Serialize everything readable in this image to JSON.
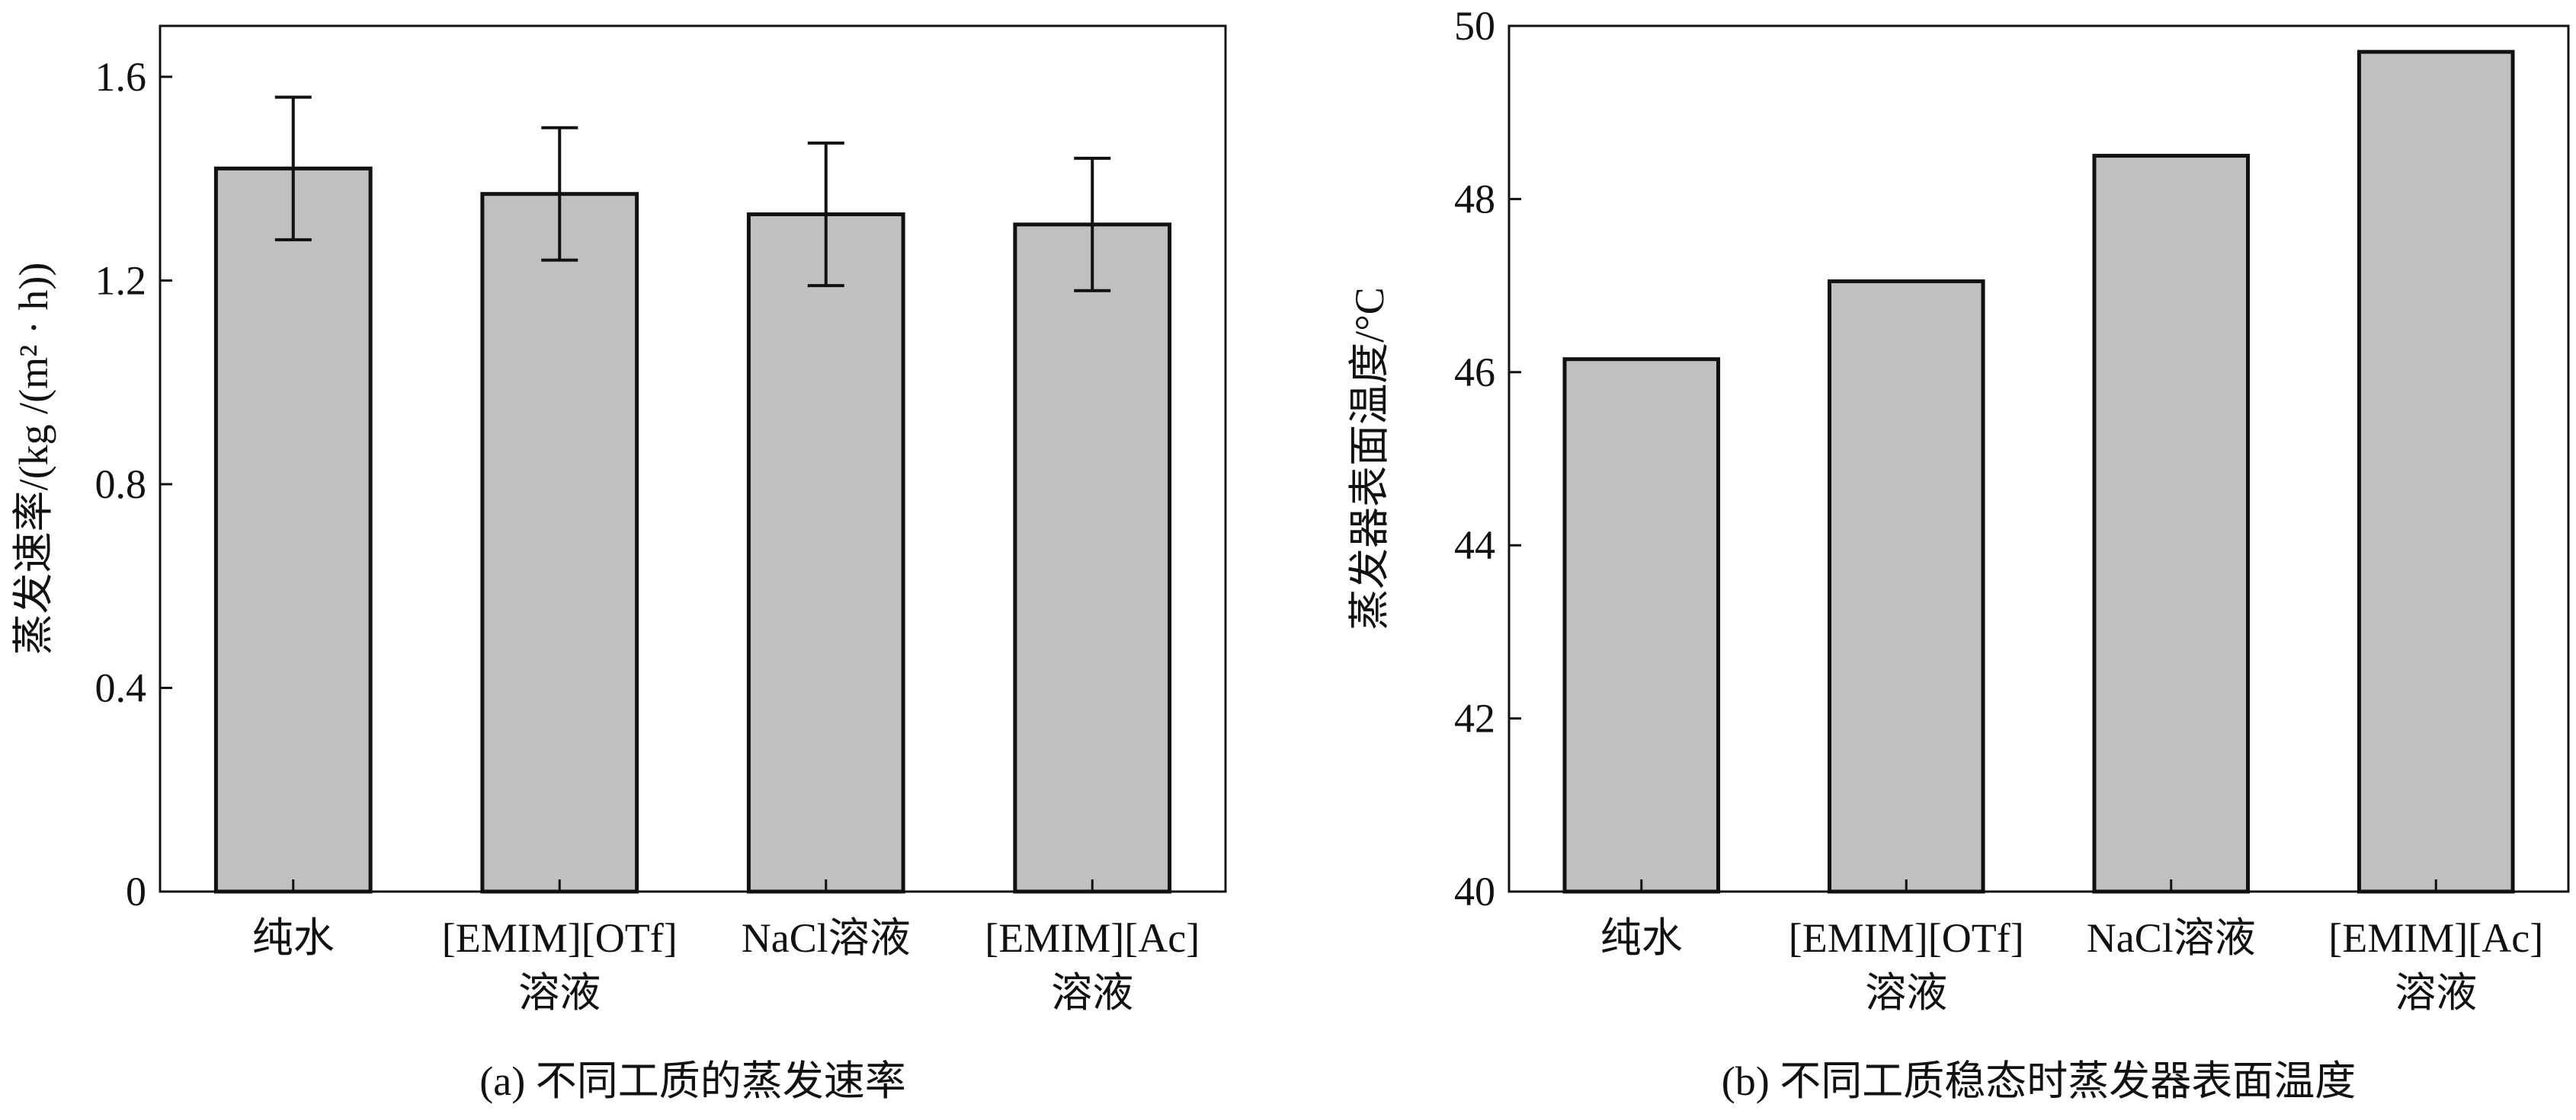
{
  "chart_data": [
    {
      "id": "a",
      "type": "bar",
      "caption": "(a) 不同工质的蒸发速率",
      "ylabel": "蒸发速率/(kg /(m² · h))",
      "xlabel": "",
      "ylim": [
        0,
        1.7
      ],
      "yticks": [
        "0",
        "0.4",
        "0.8",
        "1.2",
        "1.6"
      ],
      "ytick_values": [
        0,
        0.4,
        0.8,
        1.2,
        1.6
      ],
      "categories": [
        [
          "纯水"
        ],
        [
          "[EMIM][OTf]",
          "溶液"
        ],
        [
          "NaCl溶液"
        ],
        [
          "[EMIM][Ac]",
          "溶液"
        ]
      ],
      "values": [
        1.42,
        1.37,
        1.33,
        1.31
      ],
      "errors": [
        0.14,
        0.13,
        0.14,
        0.13
      ],
      "grid": false,
      "legend": "none",
      "bar_color": "#c0c0c0"
    },
    {
      "id": "b",
      "type": "bar",
      "caption": "(b) 不同工质稳态时蒸发器表面温度",
      "ylabel": "蒸发器表面温度/°C",
      "xlabel": "",
      "ylim": [
        40,
        50
      ],
      "yticks": [
        "40",
        "42",
        "44",
        "46",
        "48",
        "50"
      ],
      "ytick_values": [
        40,
        42,
        44,
        46,
        48,
        50
      ],
      "categories": [
        [
          "纯水"
        ],
        [
          "[EMIM][OTf]",
          "溶液"
        ],
        [
          "NaCl溶液"
        ],
        [
          "[EMIM][Ac]",
          "溶液"
        ]
      ],
      "values": [
        46.15,
        47.05,
        48.5,
        49.7
      ],
      "grid": false,
      "legend": "none",
      "bar_color": "#c0c0c0"
    }
  ]
}
